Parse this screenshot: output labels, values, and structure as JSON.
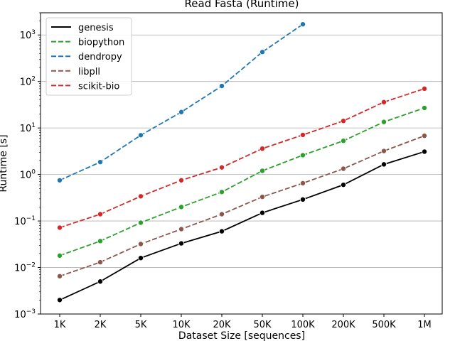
{
  "chart_data": {
    "type": "line",
    "title": "Read Fasta  (Runtime)",
    "xlabel": "Dataset Size  [sequences]",
    "ylabel": "Runtime  [s]",
    "categories": [
      "1K",
      "2K",
      "5K",
      "10K",
      "20K",
      "50K",
      "100K",
      "200K",
      "500K",
      "1M"
    ],
    "y_scale": "log",
    "ylim": [
      0.001,
      3000
    ],
    "y_ticks": [
      {
        "value": 0.001,
        "base": "10",
        "exp": "−3"
      },
      {
        "value": 0.01,
        "base": "10",
        "exp": "−2"
      },
      {
        "value": 0.1,
        "base": "10",
        "exp": "−1"
      },
      {
        "value": 1,
        "base": "10",
        "exp": "0"
      },
      {
        "value": 10,
        "base": "10",
        "exp": "1"
      },
      {
        "value": 100,
        "base": "10",
        "exp": "2"
      },
      {
        "value": 1000,
        "base": "10",
        "exp": "3"
      }
    ],
    "grid": "horizontal",
    "legend_position": "top-left",
    "series": [
      {
        "name": "genesis",
        "color": "#000000",
        "dashed": false,
        "values": [
          0.002,
          0.005,
          0.016,
          0.033,
          0.06,
          0.15,
          0.29,
          0.6,
          1.65,
          3.1
        ]
      },
      {
        "name": "biopython",
        "color": "#2ca02c",
        "dashed": true,
        "values": [
          0.018,
          0.037,
          0.092,
          0.2,
          0.42,
          1.2,
          2.6,
          5.3,
          13.5,
          27
        ]
      },
      {
        "name": "dendropy",
        "color": "#1f77b4",
        "dashed": true,
        "values": [
          0.75,
          1.85,
          7.0,
          22,
          80,
          430,
          1700,
          null,
          null,
          null
        ]
      },
      {
        "name": "libpll",
        "color": "#8c564b",
        "dashed": true,
        "values": [
          0.0065,
          0.013,
          0.032,
          0.067,
          0.14,
          0.33,
          0.65,
          1.33,
          3.2,
          6.8
        ]
      },
      {
        "name": "scikit-bio",
        "color": "#d62728",
        "dashed": true,
        "values": [
          0.072,
          0.14,
          0.34,
          0.75,
          1.42,
          3.6,
          7.1,
          14.2,
          36,
          70
        ]
      }
    ]
  }
}
